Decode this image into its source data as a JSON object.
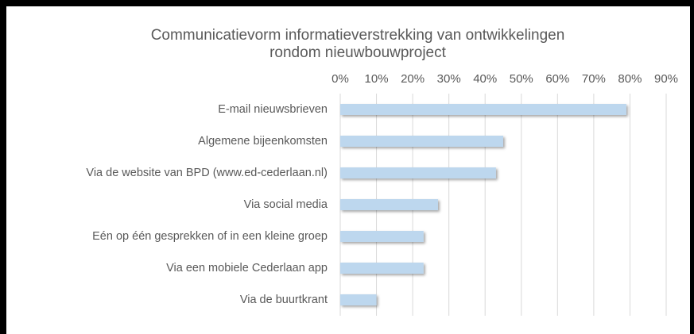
{
  "chart_data": {
    "type": "bar",
    "orientation": "horizontal",
    "title": [
      "Communicatievorm informatieverstrekking van ontwikkelingen",
      "rondom nieuwbouwproject"
    ],
    "categories": [
      "E-mail nieuwsbrieven",
      "Algemene bijeenkomsten",
      "Via de website van BPD (www.ed-cederlaan.nl)",
      "Via social media",
      "Eén op één gesprekken of in een kleine groep",
      "Via een mobiele Cederlaan app",
      "Via de buurtkrant"
    ],
    "values": [
      79,
      45,
      43,
      27,
      23,
      23,
      10
    ],
    "color": "#bdd7ee",
    "xlim": [
      0,
      90
    ],
    "xticks": [
      {
        "value": 0,
        "label": "0%"
      },
      {
        "value": 10,
        "label": "10%"
      },
      {
        "value": 20,
        "label": "20%"
      },
      {
        "value": 30,
        "label": "30%"
      },
      {
        "value": 40,
        "label": "40%"
      },
      {
        "value": 50,
        "label": "50%"
      },
      {
        "value": 60,
        "label": "60%"
      },
      {
        "value": 70,
        "label": "70%"
      },
      {
        "value": 80,
        "label": "80%"
      },
      {
        "value": 90,
        "label": "90%"
      }
    ],
    "grid": true
  }
}
